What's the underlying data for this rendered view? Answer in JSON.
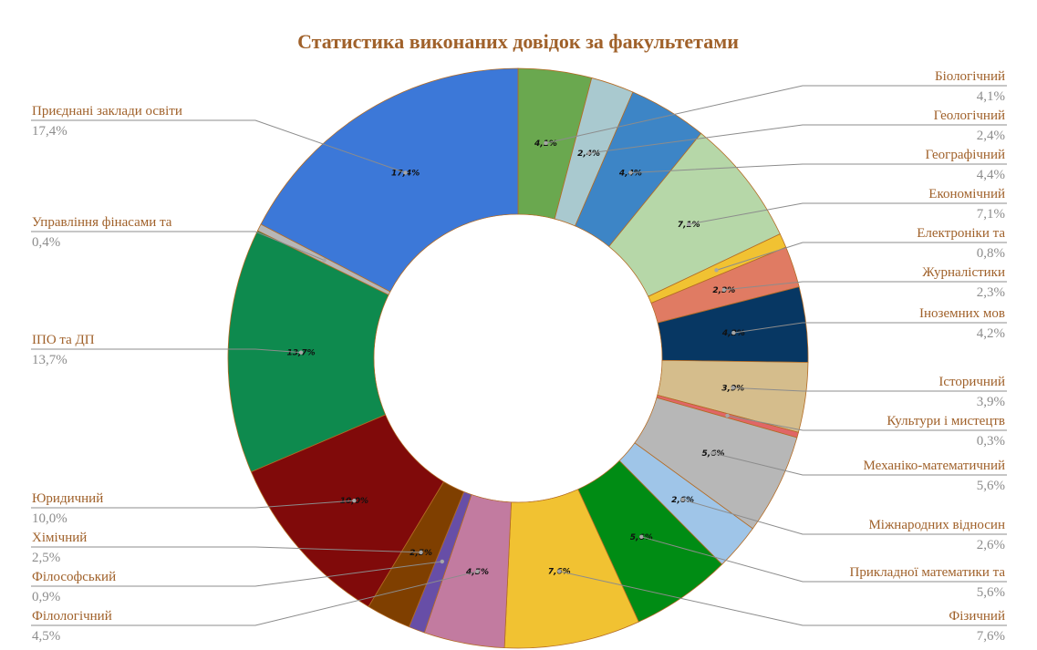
{
  "chart_data": {
    "type": "pie",
    "variant": "doughnut",
    "title": "Статистика виконаних довідок за факультетами",
    "slices": [
      {
        "name": "Біологічний",
        "value": 4.1,
        "label": "4,1%",
        "color": "#6aa84f"
      },
      {
        "name": "Геологічний",
        "value": 2.4,
        "label": "2,4%",
        "color": "#a9c9cf"
      },
      {
        "name": "Географічний",
        "value": 4.4,
        "label": "4,4%",
        "color": "#3d85c6"
      },
      {
        "name": "Економічний",
        "value": 7.1,
        "label": "7,1%",
        "color": "#b6d7a8"
      },
      {
        "name": "Електроніки та",
        "value": 0.8,
        "label": "0,8%",
        "color": "#f1c232"
      },
      {
        "name": "Журналістики",
        "value": 2.3,
        "label": "2,3%",
        "color": "#e07b63"
      },
      {
        "name": "Іноземних мов",
        "value": 4.2,
        "label": "4,2%",
        "color": "#073763"
      },
      {
        "name": "Історичний",
        "value": 3.9,
        "label": "3,9%",
        "color": "#d5bd8c"
      },
      {
        "name": "Культури і мистецтв",
        "value": 0.3,
        "label": "0,3%",
        "color": "#e06666"
      },
      {
        "name": "Механіко-математичний",
        "value": 5.6,
        "label": "5,6%",
        "color": "#b7b7b7"
      },
      {
        "name": "Міжнародних відносин",
        "value": 2.6,
        "label": "2,6%",
        "color": "#9fc5e8"
      },
      {
        "name": "Прикладної математики та",
        "value": 5.6,
        "label": "5,6%",
        "color": "#008c14"
      },
      {
        "name": "Фізичний",
        "value": 7.6,
        "label": "7,6%",
        "color": "#f1c232"
      },
      {
        "name": "Філологічний",
        "value": 4.5,
        "label": "4,5%",
        "color": "#c27ba0"
      },
      {
        "name": "Філософський",
        "value": 0.9,
        "label": "0,9%",
        "color": "#674ea7"
      },
      {
        "name": "Хімічний",
        "value": 2.5,
        "label": "2,5%",
        "color": "#7f3f00"
      },
      {
        "name": "Юридичний",
        "value": 10.0,
        "label": "10,0%",
        "color": "#800a0a"
      },
      {
        "name": "ІПО та ДП",
        "value": 13.7,
        "label": "13,7%",
        "color": "#0e8a4e"
      },
      {
        "name": "Управління фінасами та",
        "value": 0.4,
        "label": "0,4%",
        "color": "#b7b7b7"
      },
      {
        "name": "Приєднані заклади освіти",
        "value": 17.4,
        "label": "17,4%",
        "color": "#3c78d8"
      }
    ],
    "legend": "none",
    "data_labels": "outside with leader lines"
  }
}
